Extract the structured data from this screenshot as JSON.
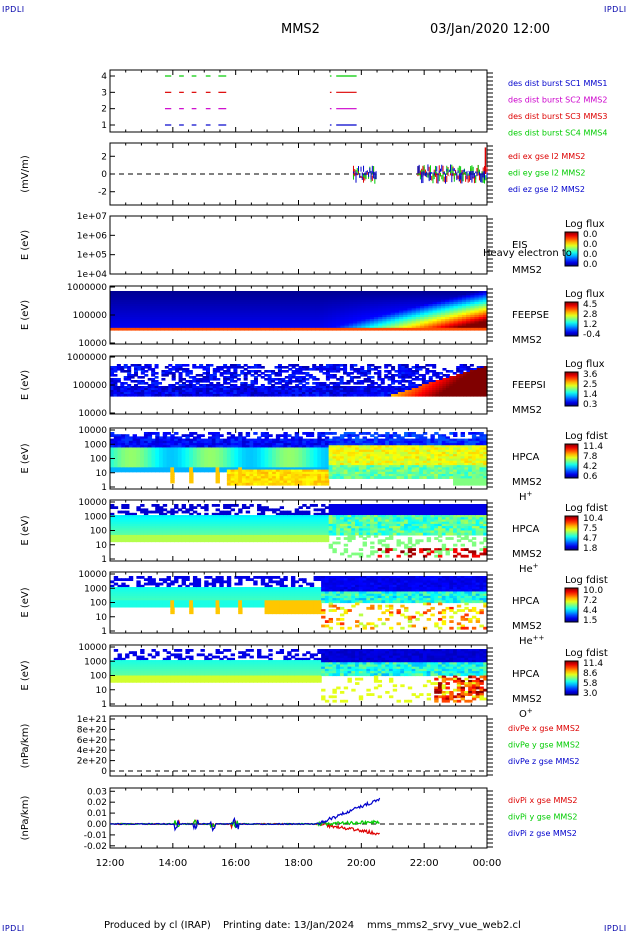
{
  "header": {
    "corner_label": "IPDLI",
    "spacecraft": "MMS2",
    "datetime": "03/Jan/2020 12:00"
  },
  "footer": {
    "produced_by": "Produced by cl (IRAP)",
    "printing_date": "Printing date: 13/Jan/2024",
    "filename": "mms_mms2_srvy_vue_web2.cl"
  },
  "colors": {
    "mms1": "#0000cc",
    "mms2": "#cc00cc",
    "mms3": "#dd0000",
    "mms4": "#00cc00",
    "red": "#dd0000",
    "green": "#00cc00",
    "blue": "#0000cc"
  },
  "chart_data": {
    "type": "multi-panel time series / spectrogram",
    "x_axis": {
      "label": "",
      "ticks": [
        "12:00",
        "14:00",
        "16:00",
        "18:00",
        "20:00",
        "22:00",
        "00:00"
      ],
      "range_hours": [
        12,
        24
      ]
    },
    "panels": [
      {
        "id": "burst",
        "type": "line",
        "ylabel": "",
        "yticks": [
          "4",
          "3",
          "2",
          "1"
        ],
        "legend": [
          {
            "text": "des dist burst SC1 MMS1",
            "color": "#0000cc"
          },
          {
            "text": "des dist burst SC2 MMS2",
            "color": "#cc00cc"
          },
          {
            "text": "des dist burst SC3 MMS3",
            "color": "#dd0000"
          },
          {
            "text": "des dist burst SC4 MMS4",
            "color": "#00cc00"
          }
        ],
        "intervals_hours": [
          [
            13.75,
            13.95
          ],
          [
            14.2,
            14.35
          ],
          [
            14.6,
            14.75
          ],
          [
            15.05,
            15.2
          ],
          [
            15.45,
            15.7
          ],
          [
            19.0,
            19.05
          ],
          [
            19.2,
            19.85
          ]
        ]
      },
      {
        "id": "efield",
        "type": "line",
        "ylabel": "(mV/m)",
        "yticks": [
          "2",
          "0",
          "-2"
        ],
        "ylim": [
          -3.5,
          3.5
        ],
        "legend": [
          {
            "text": "edi ex gse l2 MMS2",
            "color": "#dd0000"
          },
          {
            "text": "edi ey gse l2 MMS2",
            "color": "#00cc00"
          },
          {
            "text": "edi ez gse l2 MMS2",
            "color": "#0000cc"
          }
        ],
        "activity_windows_hours": [
          [
            19.75,
            20.5
          ],
          [
            21.8,
            24.0
          ]
        ],
        "peak_value": 3.0
      },
      {
        "id": "eis",
        "type": "heatmap",
        "ylabel": "E (eV)",
        "yticks": [
          "1e+07",
          "1e+06",
          "1e+05",
          "1e+04"
        ],
        "instrument": "EIS",
        "spacecraft": "MMS2",
        "overlay_text": "Heavy electron to",
        "colorbar_title": "Log flux",
        "colorbar_ticks": [
          "0.0",
          "0.0",
          "0.0",
          "0.0"
        ]
      },
      {
        "id": "feeps_e",
        "type": "heatmap",
        "ylabel": "E (eV)",
        "yticks": [
          "1000000",
          "100000",
          "10000"
        ],
        "instrument": "FEEPSE",
        "spacecraft": "MMS2",
        "colorbar_title": "Log flux",
        "colorbar_ticks": [
          "4.5",
          "2.8",
          "1.2",
          "-0.4"
        ]
      },
      {
        "id": "feeps_i",
        "type": "heatmap",
        "ylabel": "E (eV)",
        "yticks": [
          "1000000",
          "100000",
          "10000"
        ],
        "instrument": "FEEPSI",
        "spacecraft": "MMS2",
        "colorbar_title": "Log flux",
        "colorbar_ticks": [
          "3.6",
          "2.5",
          "1.4",
          "0.3"
        ]
      },
      {
        "id": "hpca_h",
        "type": "heatmap",
        "ylabel": "E (eV)",
        "yticks": [
          "10000",
          "1000",
          "100",
          "10",
          "1"
        ],
        "instrument": "HPCA",
        "spacecraft": "MMS2",
        "species": "H",
        "species_sup": "+",
        "colorbar_title": "Log fdist",
        "colorbar_ticks": [
          "11.4",
          "7.8",
          "4.2",
          "0.6"
        ]
      },
      {
        "id": "hpca_he1",
        "type": "heatmap",
        "ylabel": "E (eV)",
        "yticks": [
          "10000",
          "1000",
          "100",
          "10",
          "1"
        ],
        "instrument": "HPCA",
        "spacecraft": "MMS2",
        "species": "He",
        "species_sup": "+",
        "colorbar_title": "Log fdist",
        "colorbar_ticks": [
          "10.4",
          "7.5",
          "4.7",
          "1.8"
        ]
      },
      {
        "id": "hpca_he2",
        "type": "heatmap",
        "ylabel": "E (eV)",
        "yticks": [
          "10000",
          "1000",
          "100",
          "10",
          "1"
        ],
        "instrument": "HPCA",
        "spacecraft": "MMS2",
        "species": "He",
        "species_sup": "++",
        "colorbar_title": "Log fdist",
        "colorbar_ticks": [
          "10.0",
          "7.2",
          "4.4",
          "1.5"
        ]
      },
      {
        "id": "hpca_o",
        "type": "heatmap",
        "ylabel": "E (eV)",
        "yticks": [
          "10000",
          "1000",
          "100",
          "10",
          "1"
        ],
        "instrument": "HPCA",
        "spacecraft": "MMS2",
        "species": "O",
        "species_sup": "+",
        "colorbar_title": "Log fdist",
        "colorbar_ticks": [
          "11.4",
          "8.6",
          "5.8",
          "3.0"
        ]
      },
      {
        "id": "divpe",
        "type": "line",
        "ylabel": "(nPa/km)",
        "yticks": [
          "1e+21",
          "8e+20",
          "6e+20",
          "4e+20",
          "2e+20",
          "0"
        ],
        "legend": [
          {
            "text": "divPe x gse MMS2",
            "color": "#dd0000"
          },
          {
            "text": "divPe y gse MMS2",
            "color": "#00cc00"
          },
          {
            "text": "divPe z gse MMS2",
            "color": "#0000cc"
          }
        ]
      },
      {
        "id": "divpi",
        "type": "line",
        "ylabel": "(nPa/km)",
        "yticks": [
          "0.03",
          "0.02",
          "0.01",
          "0.00",
          "-0.01",
          "-0.02"
        ],
        "ylim": [
          -0.022,
          0.033
        ],
        "legend": [
          {
            "text": "divPi x gse MMS2",
            "color": "#dd0000"
          },
          {
            "text": "divPi y gse MMS2",
            "color": "#00cc00"
          },
          {
            "text": "divPi z gse MMS2",
            "color": "#0000cc"
          }
        ],
        "series_end_values": {
          "x": -0.009,
          "y": 0.002,
          "z": 0.023
        },
        "data_end_hour": 20.6
      }
    ]
  }
}
